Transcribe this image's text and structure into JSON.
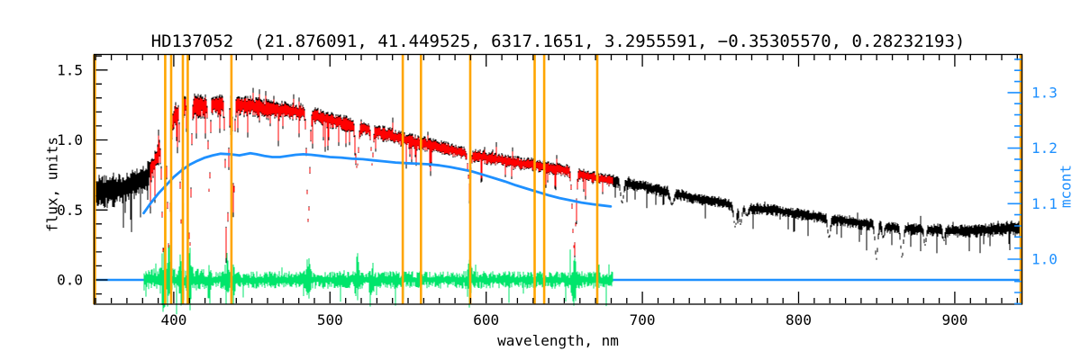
{
  "header": {
    "title": "HD137052  (21.876091, 41.449525, 6317.1651, 3.2955591, −0.35305570, 0.28232193)",
    "star_id": "HD137052",
    "params": [
      "21.876091",
      "41.449525",
      "6317.1651",
      "3.2955591",
      "-0.35305570",
      "0.28232193"
    ]
  },
  "colors": {
    "spectrum": "#000000",
    "fit": "#ff0000",
    "residuals": "#00e56b",
    "mcont": "#1e90ff",
    "marker": "#ffa500",
    "mask": "#ffff00",
    "frame": "#000000"
  },
  "chart_data": {
    "type": "line",
    "title": "HD137052  (21.876091, 41.449525, 6317.1651, 3.2955591, −0.35305570, 0.28232193)",
    "xlabel": "wavelength, nm",
    "ylabel_left": "flux, units",
    "ylabel_right": "mcont",
    "grid": false,
    "legend": "none",
    "x_axis": {
      "range_nm": [
        349,
        943
      ],
      "ticks": [
        400,
        500,
        600,
        700,
        800,
        900
      ],
      "tick_labels": [
        "400",
        "500",
        "600",
        "700",
        "800",
        "900"
      ],
      "minor_step": 10
    },
    "flux_axis": {
      "range": [
        -0.17,
        1.61
      ],
      "ticks": [
        0.0,
        0.5,
        1.0,
        1.5
      ],
      "tick_labels": [
        "0.0",
        "0.5",
        "1.0",
        "1.5"
      ],
      "minor_step": 0.1
    },
    "mcont_axis": {
      "range": [
        0.92,
        1.37
      ],
      "ticks": [
        1.0,
        1.1,
        1.2,
        1.3
      ],
      "tick_labels": [
        "1.0",
        "1.1",
        "1.2",
        "1.3"
      ],
      "minor_step": 0.02
    },
    "marker_lines_nm": [
      394.5,
      398.3,
      405.8,
      408.9,
      436.9,
      546.6,
      558.2,
      589.8,
      631.0,
      637.1,
      671.1
    ],
    "edge_marker_lines_nm": [
      349.2,
      942.5
    ],
    "series": [
      {
        "name": "observed-spectrum",
        "color": "#000000",
        "range_nm": [
          349,
          943
        ],
        "envelope": [
          [
            349,
            0.65
          ],
          [
            358,
            0.64
          ],
          [
            366,
            0.66
          ],
          [
            374,
            0.69
          ],
          [
            381,
            0.73
          ],
          [
            387,
            0.82
          ],
          [
            392,
            0.98
          ],
          [
            397,
            1.12
          ],
          [
            402,
            1.2
          ],
          [
            407,
            1.25
          ],
          [
            412,
            1.26
          ],
          [
            418,
            1.25
          ],
          [
            424,
            1.26
          ],
          [
            430,
            1.26
          ],
          [
            436,
            1.27
          ],
          [
            442,
            1.26
          ],
          [
            450,
            1.25
          ],
          [
            458,
            1.23
          ],
          [
            466,
            1.22
          ],
          [
            474,
            1.21
          ],
          [
            482,
            1.2
          ],
          [
            490,
            1.18
          ],
          [
            498,
            1.15
          ],
          [
            506,
            1.13
          ],
          [
            514,
            1.11
          ],
          [
            522,
            1.09
          ],
          [
            530,
            1.06
          ],
          [
            538,
            1.04
          ],
          [
            546,
            1.01
          ],
          [
            554,
            0.99
          ],
          [
            562,
            0.97
          ],
          [
            570,
            0.95
          ],
          [
            578,
            0.93
          ],
          [
            586,
            0.91
          ],
          [
            594,
            0.89
          ],
          [
            602,
            0.87
          ],
          [
            610,
            0.86
          ],
          [
            618,
            0.84
          ],
          [
            626,
            0.83
          ],
          [
            634,
            0.82
          ],
          [
            642,
            0.8
          ],
          [
            650,
            0.79
          ],
          [
            658,
            0.77
          ],
          [
            666,
            0.74
          ],
          [
            674,
            0.72
          ],
          [
            682,
            0.71
          ],
          [
            690,
            0.69
          ],
          [
            700,
            0.67
          ],
          [
            712,
            0.64
          ],
          [
            724,
            0.61
          ],
          [
            736,
            0.58
          ],
          [
            748,
            0.56
          ],
          [
            760,
            0.53
          ],
          [
            772,
            0.51
          ],
          [
            784,
            0.5
          ],
          [
            796,
            0.48
          ],
          [
            808,
            0.46
          ],
          [
            820,
            0.44
          ],
          [
            832,
            0.42
          ],
          [
            844,
            0.4
          ],
          [
            856,
            0.38
          ],
          [
            868,
            0.37
          ],
          [
            880,
            0.36
          ],
          [
            892,
            0.355
          ],
          [
            904,
            0.35
          ],
          [
            916,
            0.355
          ],
          [
            928,
            0.365
          ],
          [
            936,
            0.375
          ],
          [
            943,
            0.36
          ]
        ],
        "noise_halfwidth": [
          [
            349,
            0.085
          ],
          [
            378,
            0.075
          ],
          [
            388,
            0.065
          ],
          [
            400,
            0.06
          ],
          [
            430,
            0.057
          ],
          [
            470,
            0.05
          ],
          [
            520,
            0.045
          ],
          [
            580,
            0.04
          ],
          [
            640,
            0.037
          ],
          [
            700,
            0.033
          ],
          [
            760,
            0.03
          ],
          [
            820,
            0.032
          ],
          [
            880,
            0.034
          ],
          [
            930,
            0.038
          ],
          [
            943,
            0.05
          ]
        ],
        "line_spike_prob": [
          [
            349,
            0.1
          ],
          [
            390,
            0.13
          ],
          [
            470,
            0.12
          ],
          [
            600,
            0.09
          ],
          [
            680,
            0.07
          ],
          [
            760,
            0.05
          ],
          [
            943,
            0.07
          ]
        ],
        "line_spike_depth": [
          [
            349,
            0.25
          ],
          [
            470,
            0.25
          ],
          [
            480,
            0.2
          ],
          [
            600,
            0.18
          ],
          [
            680,
            0.14
          ],
          [
            760,
            0.12
          ],
          [
            820,
            0.15
          ],
          [
            943,
            0.16
          ]
        ]
      },
      {
        "name": "fitted-spectrum",
        "color": "#ff0000",
        "range_nm": [
          385,
          681
        ]
      },
      {
        "name": "residuals",
        "color": "#00e56b",
        "range_nm": [
          381,
          681
        ],
        "mean": 0.0,
        "typical_amplitude": 0.045
      },
      {
        "name": "mcont-curve",
        "color": "#1e90ff",
        "range_nm": [
          380.7,
          679.7
        ],
        "points": [
          [
            380.7,
            1.083
          ],
          [
            385,
            1.1
          ],
          [
            390,
            1.118
          ],
          [
            395,
            1.133
          ],
          [
            400,
            1.148
          ],
          [
            405,
            1.16
          ],
          [
            410,
            1.17
          ],
          [
            415,
            1.177
          ],
          [
            420,
            1.183
          ],
          [
            425,
            1.187
          ],
          [
            430,
            1.19
          ],
          [
            436,
            1.189
          ],
          [
            442,
            1.187
          ],
          [
            449,
            1.191
          ],
          [
            453,
            1.189
          ],
          [
            458,
            1.186
          ],
          [
            463,
            1.184
          ],
          [
            468,
            1.184
          ],
          [
            473,
            1.186
          ],
          [
            478,
            1.188
          ],
          [
            483,
            1.189
          ],
          [
            488,
            1.188
          ],
          [
            494,
            1.186
          ],
          [
            500,
            1.184
          ],
          [
            507,
            1.183
          ],
          [
            514,
            1.181
          ],
          [
            521,
            1.18
          ],
          [
            528,
            1.178
          ],
          [
            535,
            1.176
          ],
          [
            542,
            1.174
          ],
          [
            549,
            1.173
          ],
          [
            556,
            1.172
          ],
          [
            563,
            1.171
          ],
          [
            570,
            1.169
          ],
          [
            577,
            1.166
          ],
          [
            584,
            1.162
          ],
          [
            591,
            1.158
          ],
          [
            598,
            1.152
          ],
          [
            605,
            1.146
          ],
          [
            612,
            1.14
          ],
          [
            619,
            1.133
          ],
          [
            626,
            1.127
          ],
          [
            633,
            1.121
          ],
          [
            640,
            1.115
          ],
          [
            647,
            1.11
          ],
          [
            654,
            1.106
          ],
          [
            661,
            1.102
          ],
          [
            668,
            1.099
          ],
          [
            674,
            1.097
          ],
          [
            679.7,
            1.095
          ]
        ]
      },
      {
        "name": "zero-line",
        "color": "#1e90ff",
        "flux": 0.0,
        "range_nm": [
          349,
          942
        ]
      }
    ],
    "absorption_lines": [
      [
        393.4,
        0.17,
        0.9
      ],
      [
        396.9,
        0.19,
        0.9
      ],
      [
        404.6,
        0.42,
        0.6
      ],
      [
        410.2,
        0.22,
        0.8
      ],
      [
        422.7,
        0.62,
        0.6
      ],
      [
        434.0,
        0.15,
        0.8
      ],
      [
        438.4,
        0.55,
        0.5
      ],
      [
        486.1,
        0.42,
        0.9
      ],
      [
        517.3,
        0.8,
        0.9
      ],
      [
        527.0,
        0.82,
        0.6
      ],
      [
        589.3,
        0.68,
        0.9
      ],
      [
        656.3,
        0.23,
        1.1
      ],
      [
        687.0,
        0.55,
        0.9
      ],
      [
        719.0,
        0.54,
        1.2
      ],
      [
        759.4,
        0.38,
        0.9
      ],
      [
        762.8,
        0.4,
        0.9
      ],
      [
        766.9,
        0.46,
        0.9
      ],
      [
        819.5,
        0.3,
        0.8
      ],
      [
        849.8,
        0.15,
        0.8
      ],
      [
        854.2,
        0.3,
        0.6
      ],
      [
        866.2,
        0.16,
        0.8
      ],
      [
        881.0,
        0.25,
        0.7
      ],
      [
        893.0,
        0.28,
        0.6
      ]
    ],
    "masked_segments": [
      {
        "nm": 394.7,
        "flux_from": 0.07,
        "flux_to": 0.52
      },
      {
        "nm": 405.9,
        "flux_from": 0.1,
        "flux_to": 0.55
      },
      {
        "nm": 437.0,
        "flux_from": 1.0,
        "flux_to": 1.15
      },
      {
        "nm": 589.9,
        "flux_from": 0.72,
        "flux_to": 0.95
      },
      {
        "nm": 637.2,
        "flux_from": 0.8,
        "flux_to": 0.9
      },
      {
        "nm": 671.2,
        "flux_from": 0.55,
        "flux_to": 0.78
      }
    ]
  }
}
